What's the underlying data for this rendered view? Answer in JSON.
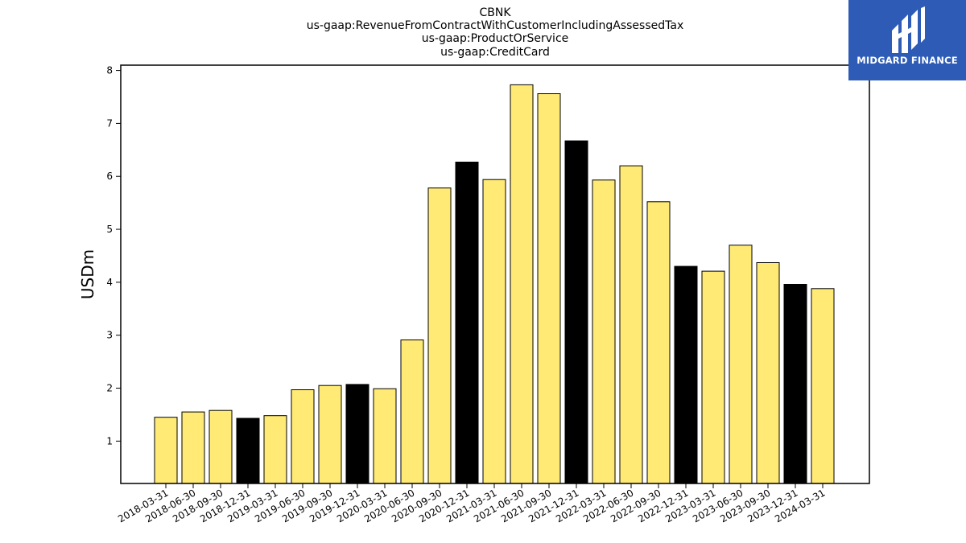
{
  "chart_data": {
    "type": "bar",
    "title_lines": [
      "CBNK",
      "us-gaap:RevenueFromContractWithCustomerIncludingAssessedTax",
      "us-gaap:ProductOrService",
      "us-gaap:CreditCard"
    ],
    "ylabel": "USDm",
    "xlabel": "",
    "ylim": [
      0.2,
      8.1
    ],
    "yticks": [
      1,
      2,
      3,
      4,
      5,
      6,
      7,
      8
    ],
    "categories": [
      "2018-03-31",
      "2018-06-30",
      "2018-09-30",
      "2018-12-31",
      "2019-03-31",
      "2019-06-30",
      "2019-09-30",
      "2019-12-31",
      "2020-03-31",
      "2020-06-30",
      "2020-09-30",
      "2020-12-31",
      "2021-03-31",
      "2021-06-30",
      "2021-09-30",
      "2021-12-31",
      "2022-03-31",
      "2022-06-30",
      "2022-09-30",
      "2022-12-31",
      "2023-03-31",
      "2023-06-30",
      "2023-09-30",
      "2023-12-31",
      "2024-03-31"
    ],
    "values": [
      1.45,
      1.55,
      1.58,
      1.43,
      1.48,
      1.97,
      2.05,
      2.07,
      1.99,
      2.91,
      5.78,
      6.27,
      5.94,
      7.73,
      7.56,
      6.67,
      5.93,
      6.2,
      5.52,
      4.3,
      4.21,
      4.7,
      4.37,
      3.96,
      3.88
    ],
    "colors": {
      "default": "#ffea76",
      "highlight": "#000000",
      "edge": "#000000"
    },
    "highlighted_categories": [
      "2018-12-31",
      "2019-12-31",
      "2020-12-31",
      "2021-12-31",
      "2022-12-31",
      "2023-12-31"
    ],
    "grid": false,
    "legend": "none"
  },
  "logo": {
    "text": "MIDGARD FINANCE",
    "background": "#2d5bb5"
  }
}
